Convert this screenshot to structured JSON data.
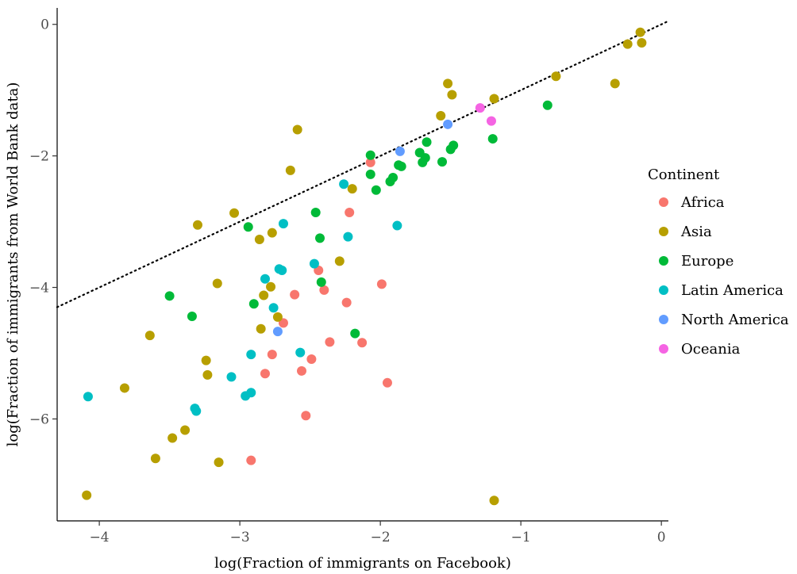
{
  "chart_data": {
    "type": "scatter",
    "xlabel": "log(Fraction of immigrants on Facebook)",
    "ylabel": "log(Fraction of immigrants from World Bank data)",
    "xlim": [
      -4.3,
      0.05
    ],
    "ylim": [
      -7.55,
      0.25
    ],
    "x_ticks": [
      -4,
      -3,
      -2,
      -1,
      0
    ],
    "y_ticks": [
      0,
      -2,
      -4,
      -6
    ],
    "x_tick_labels": [
      "−4",
      "−3",
      "−2",
      "−1",
      "0"
    ],
    "y_tick_labels": [
      "0",
      "−2",
      "−4",
      "−6"
    ],
    "grid": false,
    "reference_line": {
      "style": "dotted",
      "slope": 1,
      "intercept": 0
    },
    "legend": {
      "title": "Continent",
      "position": "right"
    },
    "series": [
      {
        "name": "Africa",
        "color": "#F8766D",
        "points": [
          [
            -2.07,
            -2.1
          ],
          [
            -2.44,
            -3.74
          ],
          [
            -2.61,
            -4.11
          ],
          [
            -2.69,
            -4.54
          ],
          [
            -2.77,
            -5.02
          ],
          [
            -2.82,
            -5.31
          ],
          [
            -2.49,
            -5.09
          ],
          [
            -2.56,
            -5.27
          ],
          [
            -2.53,
            -5.95
          ],
          [
            -2.92,
            -6.63
          ],
          [
            -2.4,
            -4.04
          ],
          [
            -2.24,
            -4.23
          ],
          [
            -2.36,
            -4.83
          ],
          [
            -2.22,
            -2.86
          ],
          [
            -2.13,
            -4.84
          ],
          [
            -1.99,
            -3.95
          ],
          [
            -1.95,
            -5.45
          ]
        ]
      },
      {
        "name": "Asia",
        "color": "#B79F00",
        "points": [
          [
            -0.15,
            -0.12
          ],
          [
            -0.14,
            -0.28
          ],
          [
            -0.24,
            -0.3
          ],
          [
            -0.33,
            -0.9
          ],
          [
            -0.75,
            -0.79
          ],
          [
            -1.52,
            -0.9
          ],
          [
            -1.49,
            -1.07
          ],
          [
            -1.19,
            -1.13
          ],
          [
            -1.57,
            -1.39
          ],
          [
            -2.59,
            -1.6
          ],
          [
            -2.64,
            -2.22
          ],
          [
            -2.2,
            -2.5
          ],
          [
            -3.04,
            -2.87
          ],
          [
            -3.3,
            -3.05
          ],
          [
            -2.77,
            -3.17
          ],
          [
            -2.86,
            -3.27
          ],
          [
            -2.29,
            -3.6
          ],
          [
            -3.16,
            -3.94
          ],
          [
            -2.78,
            -3.99
          ],
          [
            -2.83,
            -4.12
          ],
          [
            -2.73,
            -4.45
          ],
          [
            -2.85,
            -4.63
          ],
          [
            -3.64,
            -4.73
          ],
          [
            -3.24,
            -5.11
          ],
          [
            -3.23,
            -5.33
          ],
          [
            -3.82,
            -5.53
          ],
          [
            -3.48,
            -6.29
          ],
          [
            -3.39,
            -6.17
          ],
          [
            -3.6,
            -6.6
          ],
          [
            -3.15,
            -6.66
          ],
          [
            -4.09,
            -7.16
          ],
          [
            -1.19,
            -7.24
          ]
        ]
      },
      {
        "name": "Europe",
        "color": "#00BA38",
        "points": [
          [
            -0.81,
            -1.23
          ],
          [
            -1.2,
            -1.74
          ],
          [
            -1.48,
            -1.84
          ],
          [
            -1.5,
            -1.9
          ],
          [
            -1.67,
            -1.79
          ],
          [
            -1.72,
            -1.95
          ],
          [
            -1.68,
            -2.03
          ],
          [
            -1.7,
            -2.1
          ],
          [
            -1.56,
            -2.09
          ],
          [
            -1.85,
            -2.16
          ],
          [
            -1.87,
            -2.14
          ],
          [
            -2.07,
            -1.99
          ],
          [
            -2.07,
            -2.28
          ],
          [
            -1.91,
            -2.33
          ],
          [
            -1.93,
            -2.39
          ],
          [
            -2.03,
            -2.52
          ],
          [
            -2.46,
            -2.86
          ],
          [
            -2.94,
            -3.08
          ],
          [
            -2.43,
            -3.25
          ],
          [
            -2.42,
            -3.92
          ],
          [
            -2.9,
            -4.25
          ],
          [
            -3.5,
            -4.13
          ],
          [
            -3.34,
            -4.44
          ],
          [
            -2.18,
            -4.7
          ]
        ]
      },
      {
        "name": "Latin America",
        "color": "#00BFC4",
        "points": [
          [
            -2.26,
            -2.43
          ],
          [
            -2.69,
            -3.03
          ],
          [
            -1.88,
            -3.06
          ],
          [
            -2.23,
            -3.23
          ],
          [
            -2.47,
            -3.64
          ],
          [
            -2.72,
            -3.72
          ],
          [
            -2.7,
            -3.74
          ],
          [
            -2.82,
            -3.87
          ],
          [
            -2.76,
            -4.31
          ],
          [
            -2.57,
            -4.99
          ],
          [
            -2.92,
            -5.02
          ],
          [
            -3.06,
            -5.36
          ],
          [
            -2.92,
            -5.6
          ],
          [
            -2.96,
            -5.65
          ],
          [
            -4.08,
            -5.66
          ],
          [
            -3.32,
            -5.84
          ],
          [
            -3.31,
            -5.88
          ]
        ]
      },
      {
        "name": "North America",
        "color": "#619CFF",
        "points": [
          [
            -1.86,
            -1.93
          ],
          [
            -1.52,
            -1.52
          ],
          [
            -2.73,
            -4.67
          ]
        ]
      },
      {
        "name": "Oceania",
        "color": "#F564E3",
        "points": [
          [
            -1.29,
            -1.27
          ],
          [
            -1.21,
            -1.47
          ]
        ]
      }
    ]
  }
}
